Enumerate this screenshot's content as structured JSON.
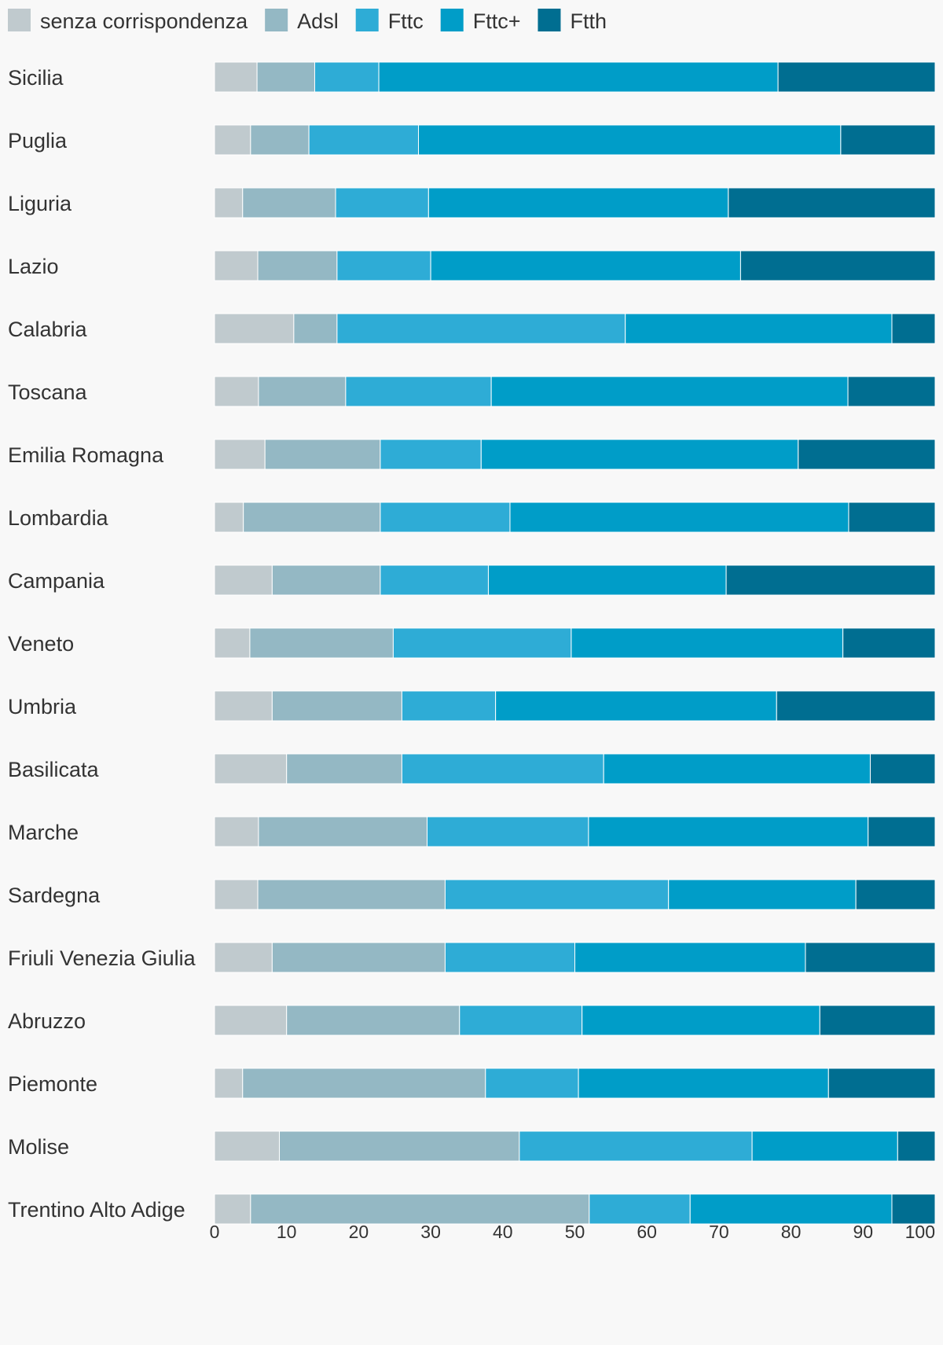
{
  "chart_data": {
    "type": "bar",
    "orientation": "horizontal",
    "stacked": true,
    "title": "",
    "xlabel": "",
    "ylabel": "",
    "xlim": [
      0,
      100
    ],
    "x_ticks": [
      0,
      10,
      20,
      30,
      40,
      50,
      60,
      70,
      80,
      90,
      100
    ],
    "grid": false,
    "legend_position": "top-left",
    "categories": [
      "Sicilia",
      "Puglia",
      "Liguria",
      "Lazio",
      "Calabria",
      "Toscana",
      "Emilia Romagna",
      "Lombardia",
      "Campania",
      "Veneto",
      "Umbria",
      "Basilicata",
      "Marche",
      "Sardegna",
      "Friuli Venezia Giulia",
      "Abruzzo",
      "Piemonte",
      "Molise",
      "Trentino Alto Adige"
    ],
    "series": [
      {
        "name": "senza corrispondenza",
        "color": "#c0cace",
        "values": [
          5.9,
          5.0,
          3.9,
          6.0,
          11.0,
          6.1,
          7.0,
          4.0,
          8.0,
          4.9,
          8.0,
          10.0,
          6.1,
          6.0,
          8.0,
          10.0,
          3.9,
          9.0,
          5.0
        ]
      },
      {
        "name": "Adsl",
        "color": "#94b8c4",
        "values": [
          8.0,
          8.1,
          12.9,
          11.0,
          6.0,
          12.1,
          16.0,
          19.0,
          15.0,
          19.9,
          18.0,
          16.0,
          23.4,
          26.0,
          24.0,
          24.0,
          33.7,
          33.3,
          47.0
        ]
      },
      {
        "name": "Fttc",
        "color": "#2eacd6",
        "values": [
          8.9,
          15.2,
          12.9,
          13.0,
          40.0,
          20.2,
          14.0,
          18.0,
          15.0,
          24.7,
          13.0,
          28.0,
          22.4,
          31.0,
          18.0,
          17.0,
          12.9,
          32.3,
          14.0
        ]
      },
      {
        "name": "Fttc+",
        "color": "#009dc8",
        "values": [
          55.4,
          58.6,
          41.6,
          43.0,
          37.0,
          49.5,
          44.0,
          47.0,
          33.0,
          37.7,
          39.0,
          37.0,
          38.8,
          26.0,
          32.0,
          33.0,
          34.7,
          20.2,
          28.0
        ]
      },
      {
        "name": "Ftth",
        "color": "#006e91",
        "values": [
          21.8,
          13.1,
          28.7,
          27.0,
          6.0,
          12.1,
          19.0,
          12.0,
          29.0,
          12.8,
          22.0,
          9.0,
          9.3,
          11.0,
          18.0,
          16.0,
          14.8,
          5.2,
          6.0
        ]
      }
    ]
  }
}
